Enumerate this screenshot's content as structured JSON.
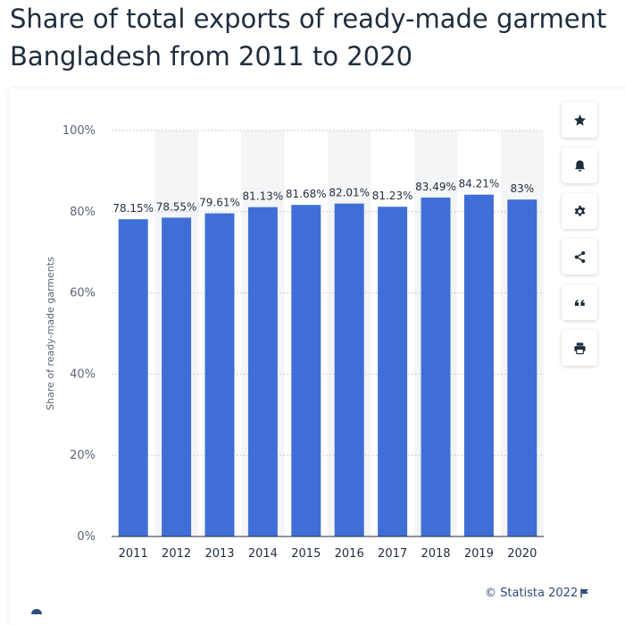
{
  "title": {
    "line1": "Share of total exports of ready-made garment",
    "line2": "Bangladesh from 2011 to 2020"
  },
  "credit": "© Statista 2022",
  "colors": {
    "bar": "#3f6fd6",
    "accent": "#2e4d7a"
  },
  "toolbar": [
    {
      "name": "favorite",
      "icon": "star-icon"
    },
    {
      "name": "notify",
      "icon": "bell-icon"
    },
    {
      "name": "settings",
      "icon": "gear-icon"
    },
    {
      "name": "share",
      "icon": "share-icon"
    },
    {
      "name": "cite",
      "icon": "quote-icon"
    },
    {
      "name": "print",
      "icon": "printer-icon"
    }
  ],
  "chart_data": {
    "type": "bar",
    "title": "Share of total exports of ready-made garment Bangladesh from 2011 to 2020",
    "xlabel": "",
    "ylabel": "Share of ready-made garments",
    "categories": [
      "2011",
      "2012",
      "2013",
      "2014",
      "2015",
      "2016",
      "2017",
      "2018",
      "2019",
      "2020"
    ],
    "values": [
      78.15,
      78.55,
      79.61,
      81.13,
      81.68,
      82.01,
      81.23,
      83.49,
      84.21,
      83
    ],
    "data_labels": [
      "78.15%",
      "78.55%",
      "79.61%",
      "81.13%",
      "81.68%",
      "82.01%",
      "81.23%",
      "83.49%",
      "84.21%",
      "83%"
    ],
    "ylim": [
      0,
      100
    ],
    "yticks": [
      0,
      20,
      40,
      60,
      80,
      100
    ],
    "ytick_labels": [
      "0%",
      "20%",
      "40%",
      "60%",
      "80%",
      "100%"
    ],
    "grid": true,
    "legend": "none"
  }
}
